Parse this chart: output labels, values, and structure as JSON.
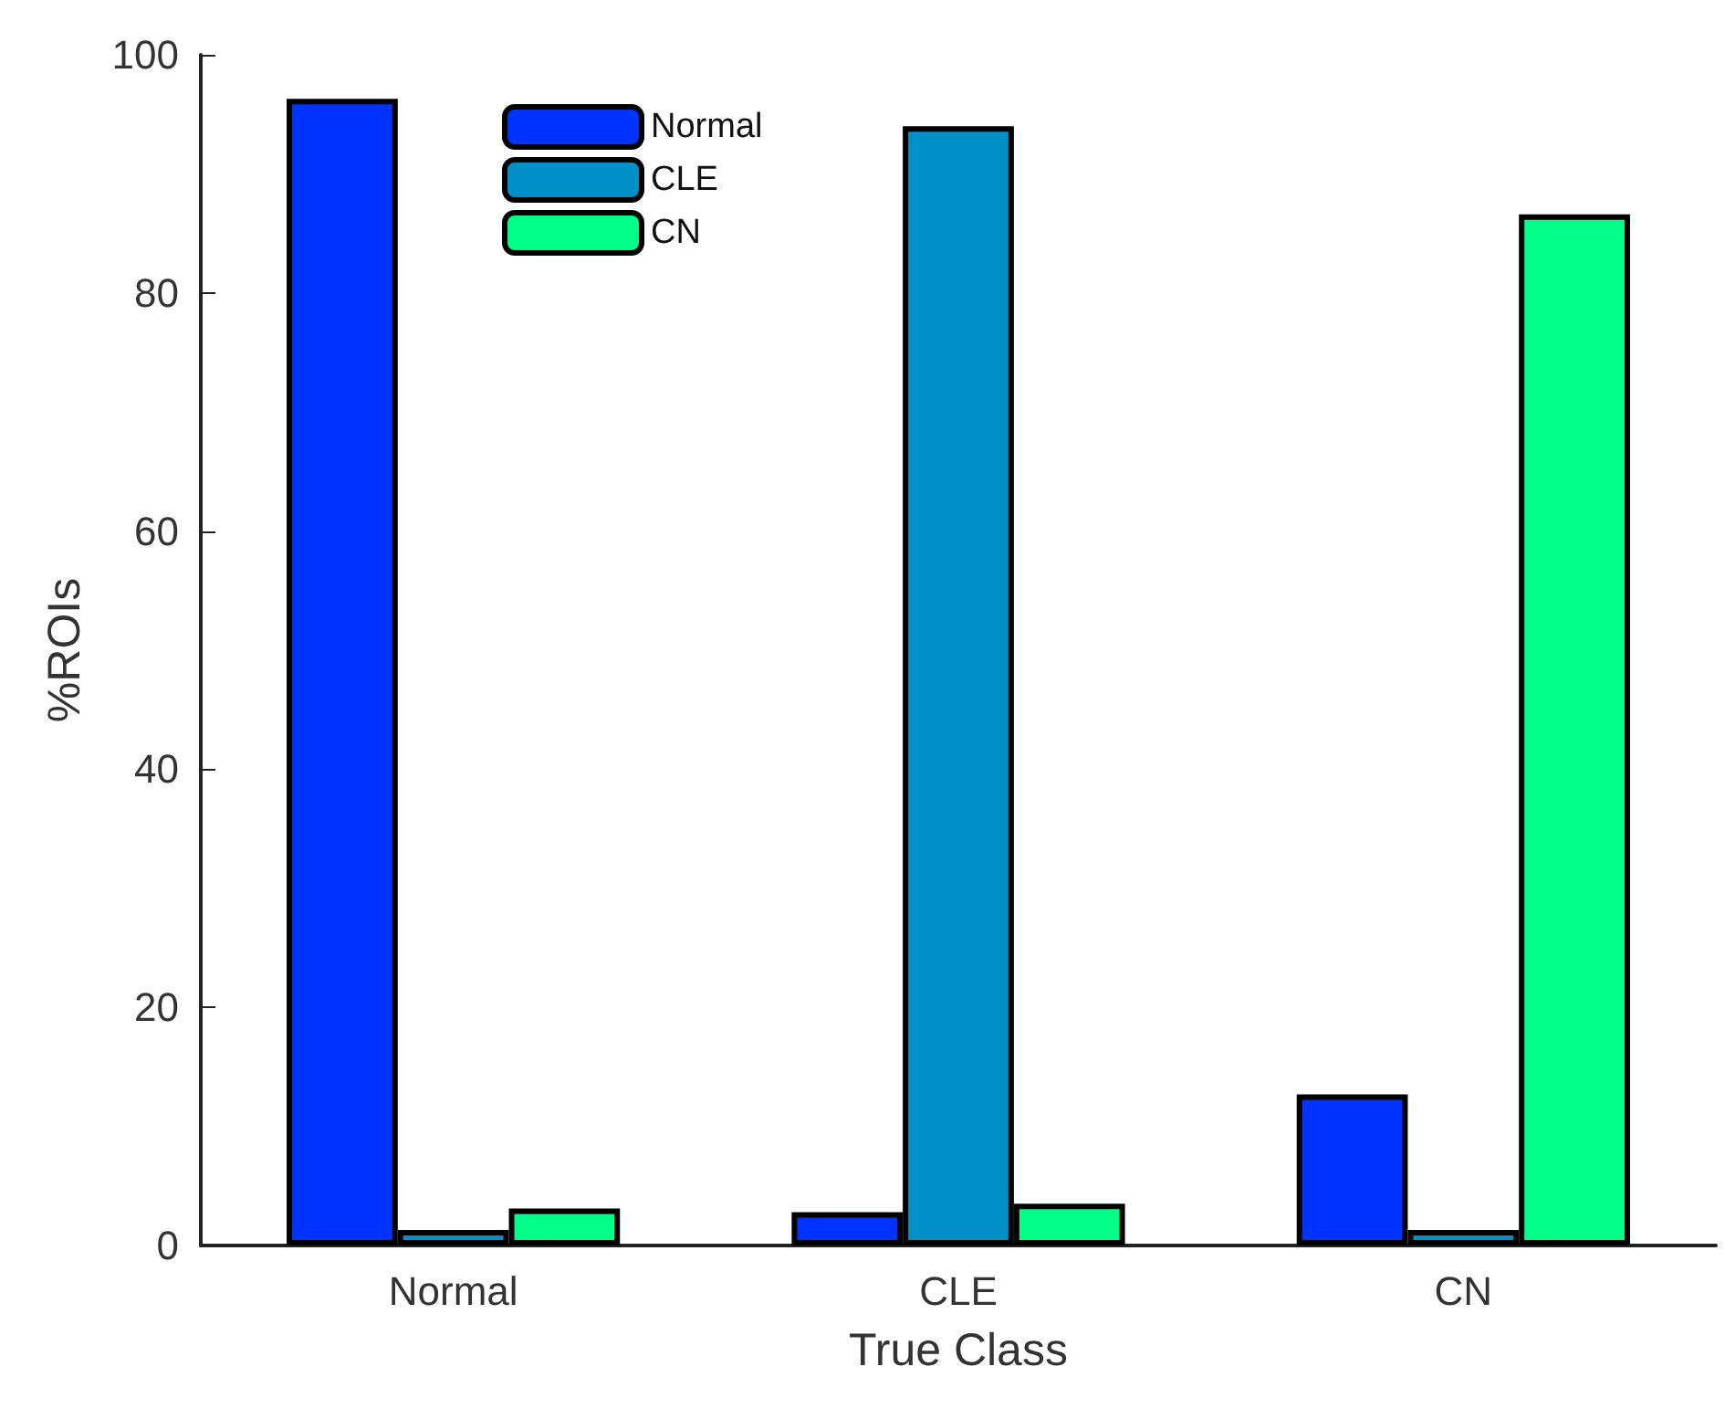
{
  "chart_data": {
    "type": "bar",
    "xlabel": "True Class",
    "ylabel": "%ROIs",
    "categories": [
      "Normal",
      "CLE",
      "CN"
    ],
    "series": [
      {
        "name": "Normal",
        "color": "#0033ff",
        "values": [
          96.3,
          2.8,
          12.7
        ]
      },
      {
        "name": "CLE",
        "color": "#0090c8",
        "values": [
          1.3,
          94,
          1.3
        ]
      },
      {
        "name": "CN",
        "color": "#00ff88",
        "values": [
          3.1,
          3.5,
          86.6
        ]
      }
    ],
    "ylim": [
      0,
      100
    ],
    "yticks": [
      0,
      20,
      40,
      60,
      80,
      100
    ],
    "grid": false,
    "legend": "top left"
  }
}
